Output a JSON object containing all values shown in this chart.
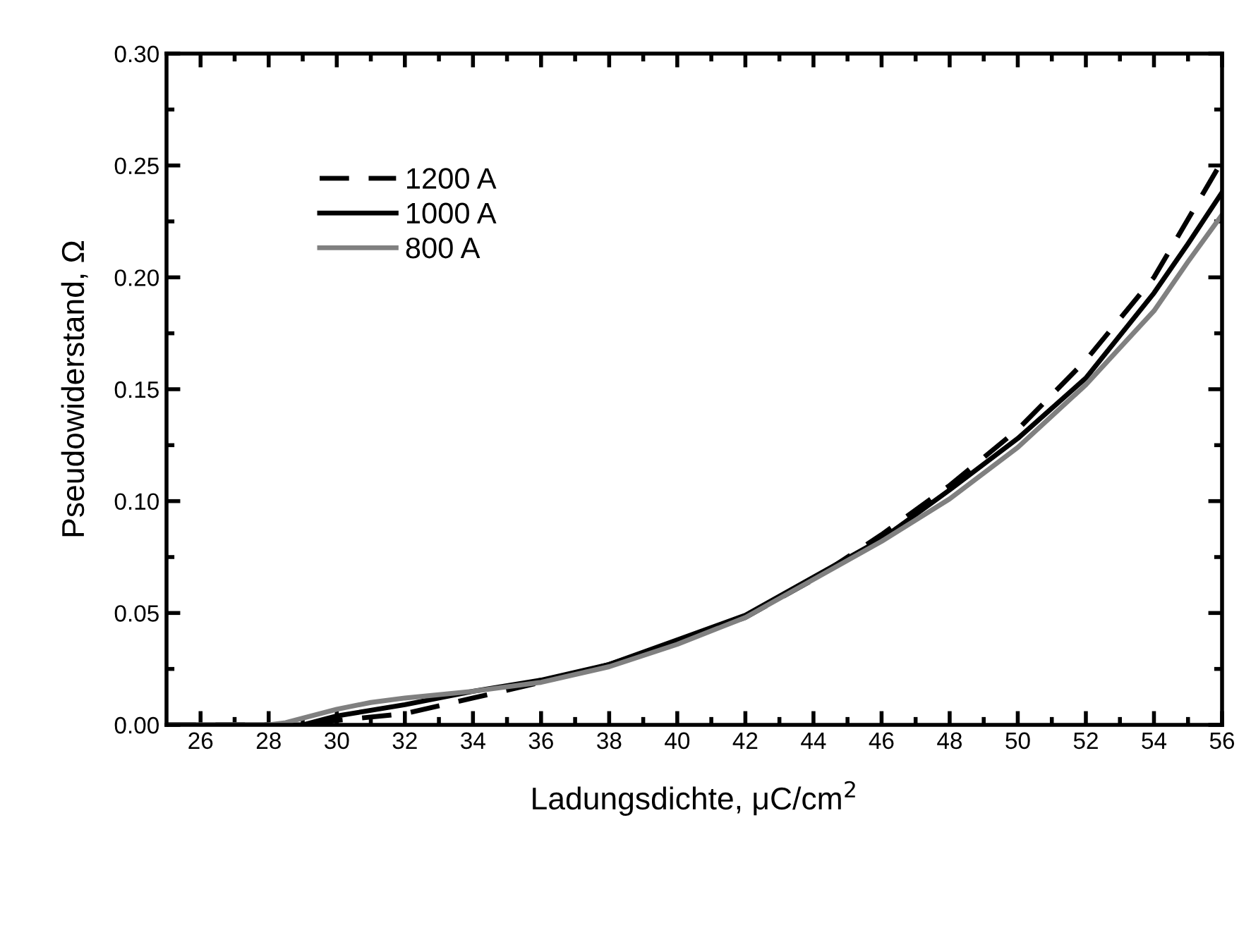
{
  "chart_data": {
    "type": "line",
    "xlabel": "Ladungsdichte, μC/cm$^{2}$",
    "ylabel": "Pseudowiderstand, Ω",
    "xlim": [
      25,
      56
    ],
    "ylim": [
      0,
      0.3
    ],
    "xticks": [
      26,
      28,
      30,
      32,
      34,
      36,
      38,
      40,
      42,
      44,
      46,
      48,
      50,
      52,
      54,
      56
    ],
    "yticks": [
      {
        "value": 0,
        "label": "0.00"
      },
      {
        "value": 0.05,
        "label": "0.05"
      },
      {
        "value": 0.1,
        "label": "0.10"
      },
      {
        "value": 0.15,
        "label": "0.15"
      },
      {
        "value": 0.2,
        "label": "0.20"
      },
      {
        "value": 0.25,
        "label": "0.25"
      },
      {
        "value": 0.3,
        "label": "0.30"
      }
    ],
    "grid": false,
    "legend": "top left",
    "marker": "none",
    "series": [
      {
        "name": "1200 A",
        "color": "#000000",
        "line_style": "dashed",
        "x": [
          25,
          28,
          29,
          30,
          32,
          34,
          36,
          38,
          40,
          42,
          44,
          46,
          48,
          50,
          52,
          54,
          56
        ],
        "values": [
          0,
          0,
          0,
          0.002,
          0.005,
          0.012,
          0.019,
          0.027,
          0.037,
          0.048,
          0.065,
          0.085,
          0.107,
          0.132,
          0.163,
          0.2,
          0.252
        ]
      },
      {
        "name": "1000 A",
        "color": "#000000",
        "line_style": "solid",
        "x": [
          25,
          28,
          29,
          30,
          32,
          34,
          36,
          38,
          40,
          42,
          44,
          46,
          48,
          50,
          52,
          54,
          55,
          56
        ],
        "values": [
          0,
          0,
          0,
          0.004,
          0.009,
          0.015,
          0.02,
          0.027,
          0.038,
          0.049,
          0.066,
          0.083,
          0.105,
          0.128,
          0.155,
          0.193,
          0.215,
          0.238
        ]
      },
      {
        "name": "800 A",
        "color": "#808080",
        "line_style": "solid",
        "x": [
          25,
          28,
          28.5,
          30,
          31,
          32,
          34,
          36,
          38,
          40,
          42,
          44,
          46,
          48,
          50,
          52,
          54,
          55,
          56
        ],
        "values": [
          0,
          0,
          0.001,
          0.007,
          0.01,
          0.012,
          0.015,
          0.019,
          0.026,
          0.036,
          0.048,
          0.065,
          0.082,
          0.101,
          0.124,
          0.152,
          0.185,
          0.207,
          0.228
        ]
      }
    ]
  }
}
